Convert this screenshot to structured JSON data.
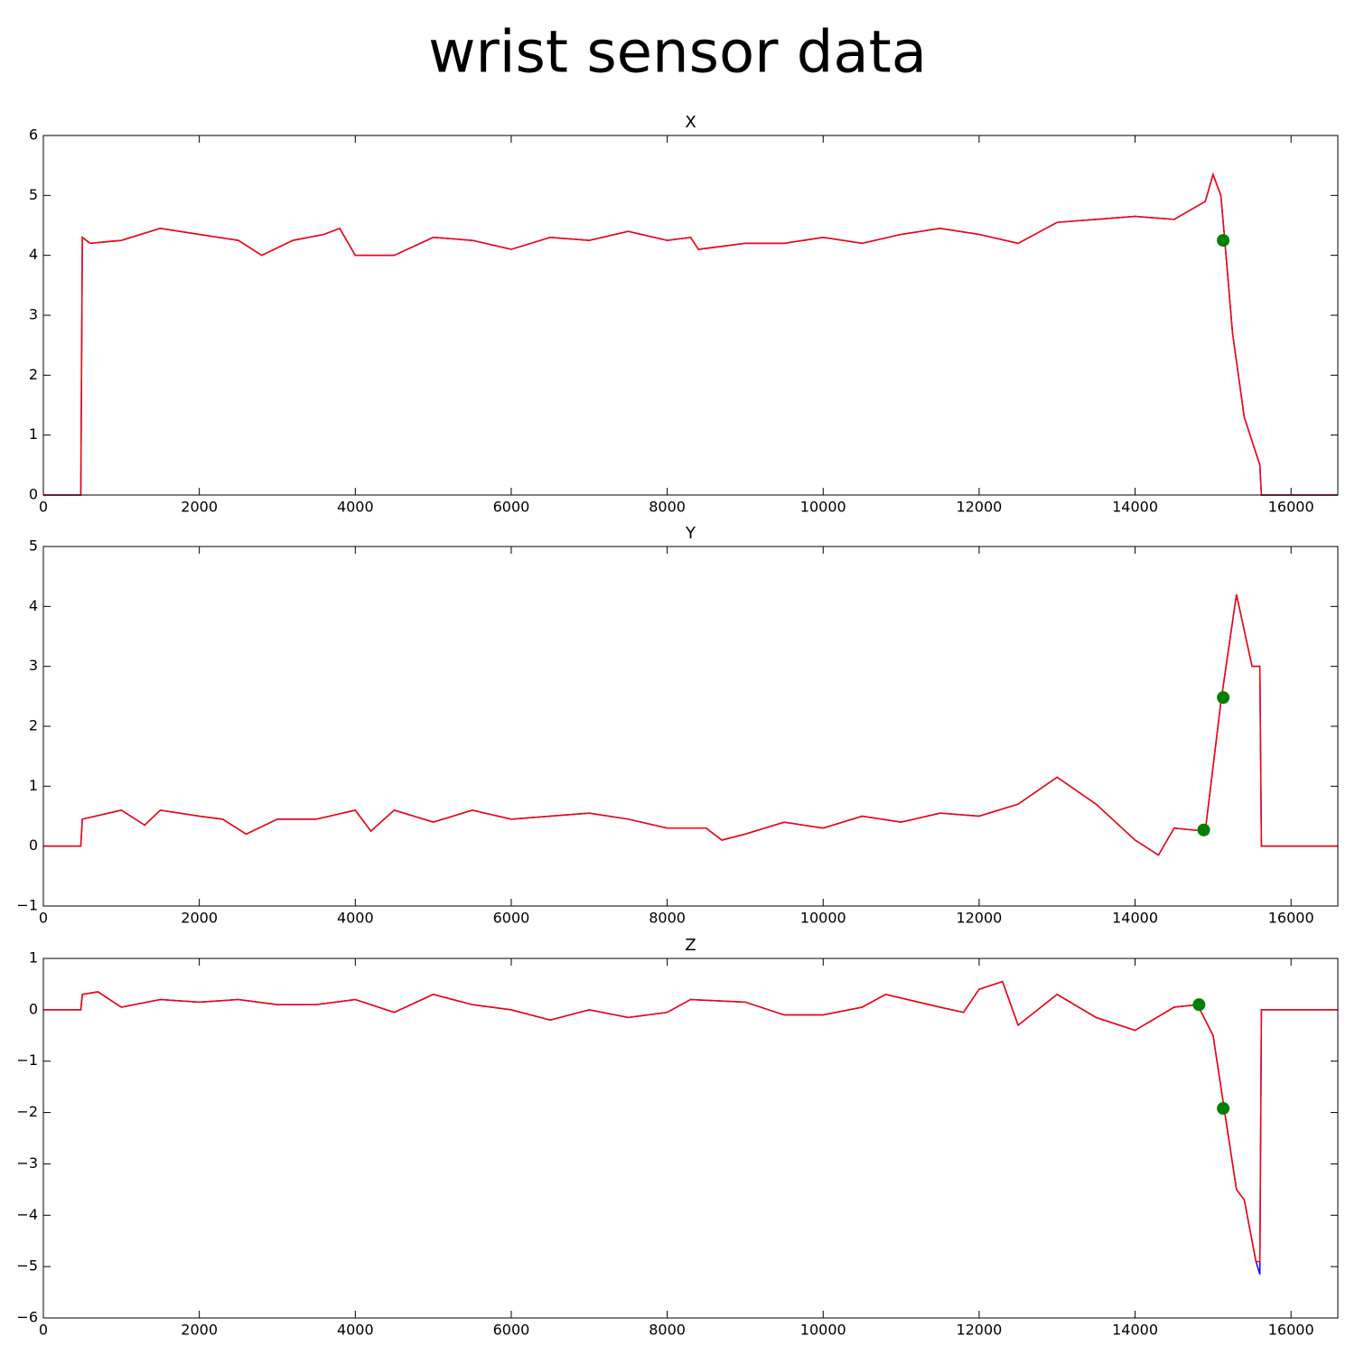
{
  "title": "wrist sensor data",
  "chart_data": [
    {
      "type": "line",
      "title": "X",
      "x": [
        0,
        480,
        500,
        600,
        1000,
        1500,
        2000,
        2500,
        2800,
        3200,
        3600,
        3800,
        4000,
        4500,
        5000,
        5500,
        6000,
        6500,
        7000,
        7500,
        8000,
        8300,
        8400,
        9000,
        9500,
        10000,
        10500,
        11000,
        11500,
        12000,
        12500,
        13000,
        13500,
        14000,
        14500,
        14900,
        15000,
        15100,
        15150,
        15250,
        15400,
        15600,
        15620,
        16600
      ],
      "series": [
        {
          "color": "#0000ff",
          "values": [
            0,
            0,
            4.3,
            4.2,
            4.25,
            4.45,
            4.35,
            4.25,
            4.0,
            4.25,
            4.35,
            4.45,
            4.0,
            4.0,
            4.3,
            4.25,
            4.1,
            4.3,
            4.25,
            4.4,
            4.25,
            4.3,
            4.1,
            4.2,
            4.2,
            4.3,
            4.2,
            4.35,
            4.45,
            4.35,
            4.2,
            4.55,
            4.6,
            4.65,
            4.6,
            4.9,
            5.35,
            5.0,
            4.25,
            2.7,
            1.3,
            0.5,
            0,
            0
          ]
        },
        {
          "color": "#ff0000",
          "values": [
            0,
            0,
            4.3,
            4.2,
            4.25,
            4.45,
            4.35,
            4.25,
            4.0,
            4.25,
            4.35,
            4.45,
            4.0,
            4.0,
            4.3,
            4.25,
            4.1,
            4.3,
            4.25,
            4.4,
            4.25,
            4.3,
            4.1,
            4.2,
            4.2,
            4.3,
            4.2,
            4.35,
            4.45,
            4.35,
            4.2,
            4.55,
            4.6,
            4.65,
            4.6,
            4.9,
            5.35,
            5.0,
            4.25,
            2.7,
            1.3,
            0.5,
            0,
            0
          ]
        }
      ],
      "markers": {
        "color": "#008000",
        "x": [
          15130
        ],
        "values": [
          4.25
        ]
      },
      "xlim": [
        0,
        16600
      ],
      "xticks": [
        0,
        2000,
        4000,
        6000,
        8000,
        10000,
        12000,
        14000,
        16000
      ],
      "ylim": [
        0,
        6
      ],
      "yticks": [
        0,
        1,
        2,
        3,
        4,
        5,
        6
      ]
    },
    {
      "type": "line",
      "title": "Y",
      "x": [
        0,
        480,
        500,
        1000,
        1300,
        1500,
        2000,
        2300,
        2600,
        3000,
        3500,
        4000,
        4200,
        4500,
        5000,
        5500,
        6000,
        6500,
        7000,
        7500,
        8000,
        8500,
        8700,
        9000,
        9500,
        10000,
        10500,
        11000,
        11500,
        12000,
        12500,
        13000,
        13500,
        14000,
        14300,
        14500,
        14900,
        15100,
        15300,
        15500,
        15600,
        15620,
        16600
      ],
      "series": [
        {
          "color": "#0000ff",
          "values": [
            0,
            0,
            0.45,
            0.6,
            0.35,
            0.6,
            0.5,
            0.45,
            0.2,
            0.45,
            0.45,
            0.6,
            0.25,
            0.6,
            0.4,
            0.6,
            0.45,
            0.5,
            0.55,
            0.45,
            0.3,
            0.3,
            0.1,
            0.2,
            0.4,
            0.3,
            0.5,
            0.4,
            0.55,
            0.5,
            0.7,
            1.15,
            0.7,
            0.1,
            -0.15,
            0.3,
            0.25,
            2.4,
            4.2,
            3.0,
            3.0,
            0,
            0
          ]
        },
        {
          "color": "#ff0000",
          "values": [
            0,
            0,
            0.45,
            0.6,
            0.35,
            0.6,
            0.5,
            0.45,
            0.2,
            0.45,
            0.45,
            0.6,
            0.25,
            0.6,
            0.4,
            0.6,
            0.45,
            0.5,
            0.55,
            0.45,
            0.3,
            0.3,
            0.1,
            0.2,
            0.4,
            0.3,
            0.5,
            0.4,
            0.55,
            0.5,
            0.7,
            1.15,
            0.7,
            0.1,
            -0.15,
            0.3,
            0.25,
            2.4,
            4.2,
            3.0,
            3.0,
            0,
            0
          ]
        }
      ],
      "markers": {
        "color": "#008000",
        "x": [
          14880,
          15130
        ],
        "values": [
          0.27,
          2.48
        ]
      },
      "xlim": [
        0,
        16600
      ],
      "xticks": [
        0,
        2000,
        4000,
        6000,
        8000,
        10000,
        12000,
        14000,
        16000
      ],
      "ylim": [
        -1,
        5
      ],
      "yticks": [
        {
          "value": -1,
          "label": "−1"
        },
        0,
        1,
        2,
        3,
        4,
        5
      ]
    },
    {
      "type": "line",
      "title": "Z",
      "x": [
        0,
        480,
        500,
        700,
        1000,
        1500,
        2000,
        2500,
        3000,
        3500,
        4000,
        4500,
        5000,
        5500,
        6000,
        6500,
        7000,
        7500,
        8000,
        8300,
        9000,
        9500,
        10000,
        10500,
        10800,
        11500,
        11800,
        12000,
        12300,
        12500,
        13000,
        13500,
        14000,
        14500,
        14800,
        15000,
        15200,
        15300,
        15400,
        15550,
        15600,
        15620,
        16600
      ],
      "series": [
        {
          "color": "#0000ff",
          "values": [
            0,
            0,
            0.3,
            0.35,
            0.05,
            0.2,
            0.15,
            0.2,
            0.1,
            0.1,
            0.2,
            -0.05,
            0.3,
            0.1,
            0.0,
            -0.2,
            0.0,
            -0.15,
            -0.05,
            0.2,
            0.15,
            -0.1,
            -0.1,
            0.05,
            0.3,
            0.05,
            -0.05,
            0.4,
            0.55,
            -0.3,
            0.3,
            -0.15,
            -0.4,
            0.05,
            0.1,
            -0.5,
            -2.5,
            -3.5,
            -3.7,
            -4.9,
            -5.15,
            0,
            0
          ]
        },
        {
          "color": "#ff0000",
          "values": [
            0,
            0,
            0.3,
            0.35,
            0.05,
            0.2,
            0.15,
            0.2,
            0.1,
            0.1,
            0.2,
            -0.05,
            0.3,
            0.1,
            0.0,
            -0.2,
            0.0,
            -0.15,
            -0.05,
            0.2,
            0.15,
            -0.1,
            -0.1,
            0.05,
            0.3,
            0.05,
            -0.05,
            0.4,
            0.55,
            -0.3,
            0.3,
            -0.15,
            -0.4,
            0.05,
            0.1,
            -0.5,
            -2.5,
            -3.5,
            -3.7,
            -4.9,
            -4.9,
            0,
            0
          ]
        }
      ],
      "markers": {
        "color": "#008000",
        "x": [
          14820,
          15130
        ],
        "values": [
          0.1,
          -1.92
        ]
      },
      "xlim": [
        0,
        16600
      ],
      "xticks": [
        0,
        2000,
        4000,
        6000,
        8000,
        10000,
        12000,
        14000,
        16000
      ],
      "ylim": [
        -6,
        1
      ],
      "yticks": [
        {
          "value": -6,
          "label": "−6"
        },
        {
          "value": -5,
          "label": "−5"
        },
        {
          "value": -4,
          "label": "−4"
        },
        {
          "value": -3,
          "label": "−3"
        },
        {
          "value": -2,
          "label": "−2"
        },
        {
          "value": -1,
          "label": "−1"
        },
        0,
        1
      ]
    }
  ]
}
